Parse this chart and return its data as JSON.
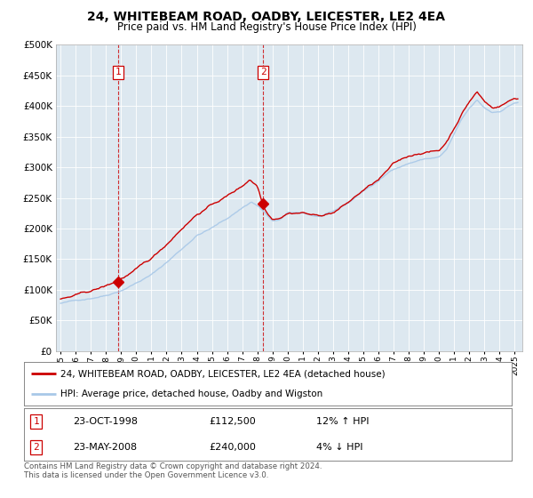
{
  "title": "24, WHITEBEAM ROAD, OADBY, LEICESTER, LE2 4EA",
  "subtitle": "Price paid vs. HM Land Registry's House Price Index (HPI)",
  "legend_line1": "24, WHITEBEAM ROAD, OADBY, LEICESTER, LE2 4EA (detached house)",
  "legend_line2": "HPI: Average price, detached house, Oadby and Wigston",
  "footnote": "Contains HM Land Registry data © Crown copyright and database right 2024.\nThis data is licensed under the Open Government Licence v3.0.",
  "sale1_date": "23-OCT-1998",
  "sale1_price": "£112,500",
  "sale1_hpi": "12% ↑ HPI",
  "sale2_date": "23-MAY-2008",
  "sale2_price": "£240,000",
  "sale2_hpi": "4% ↓ HPI",
  "hpi_color": "#a8c8e8",
  "price_color": "#cc0000",
  "vline_color": "#cc0000",
  "background_chart": "#dde8f0",
  "sale1_x": 1998.8,
  "sale1_y": 112500,
  "sale2_x": 2008.37,
  "sale2_y": 240000,
  "ylim": [
    0,
    500000
  ],
  "yticks": [
    0,
    50000,
    100000,
    150000,
    200000,
    250000,
    300000,
    350000,
    400000,
    450000,
    500000
  ],
  "xlim_left": 1994.7,
  "xlim_right": 2025.5
}
